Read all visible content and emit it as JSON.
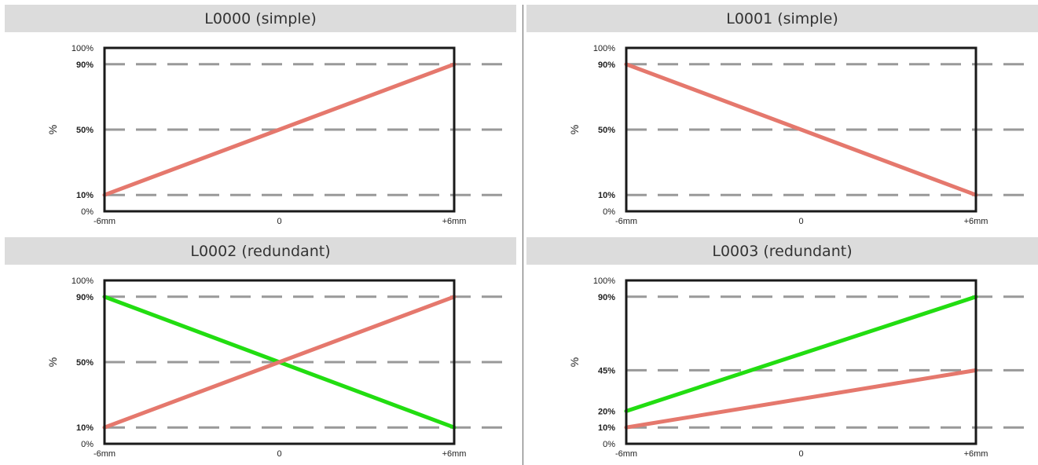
{
  "colors": {
    "header_bg": "#dcdcdc",
    "frame": "#1a1a1a",
    "grid": "#999999",
    "red_series": "#e5786d",
    "green_series": "#22dd11"
  },
  "chart_data": [
    {
      "type": "line",
      "title": "L0000 (simple)",
      "ylabel": "%",
      "xlim": [
        -6,
        6
      ],
      "ylim": [
        0,
        100
      ],
      "x_ticks": [
        {
          "value": -6,
          "label": "-6mm"
        },
        {
          "value": 0,
          "label": "0"
        },
        {
          "value": 6,
          "label": "+6mm"
        }
      ],
      "y_ticks": [
        {
          "value": 100,
          "label": "100%",
          "bold": false
        },
        {
          "value": 90,
          "label": "90%",
          "bold": true
        },
        {
          "value": 50,
          "label": "50%",
          "bold": true
        },
        {
          "value": 10,
          "label": "10%",
          "bold": true
        },
        {
          "value": 0,
          "label": "0%",
          "bold": false
        }
      ],
      "grid_dashed": [
        90,
        50,
        10
      ],
      "series": [
        {
          "color": "#e5786d",
          "x": [
            -6,
            6
          ],
          "y": [
            10,
            90
          ]
        }
      ]
    },
    {
      "type": "line",
      "title": "L0001 (simple)",
      "ylabel": "%",
      "xlim": [
        -6,
        6
      ],
      "ylim": [
        0,
        100
      ],
      "x_ticks": [
        {
          "value": -6,
          "label": "-6mm"
        },
        {
          "value": 0,
          "label": "0"
        },
        {
          "value": 6,
          "label": "+6mm"
        }
      ],
      "y_ticks": [
        {
          "value": 100,
          "label": "100%",
          "bold": false
        },
        {
          "value": 90,
          "label": "90%",
          "bold": true
        },
        {
          "value": 50,
          "label": "50%",
          "bold": true
        },
        {
          "value": 10,
          "label": "10%",
          "bold": true
        },
        {
          "value": 0,
          "label": "0%",
          "bold": false
        }
      ],
      "grid_dashed": [
        90,
        50,
        10
      ],
      "series": [
        {
          "color": "#e5786d",
          "x": [
            -6,
            6
          ],
          "y": [
            90,
            10
          ]
        }
      ]
    },
    {
      "type": "line",
      "title": "L0002 (redundant)",
      "ylabel": "%",
      "xlim": [
        -6,
        6
      ],
      "ylim": [
        0,
        100
      ],
      "x_ticks": [
        {
          "value": -6,
          "label": "-6mm"
        },
        {
          "value": 0,
          "label": "0"
        },
        {
          "value": 6,
          "label": "+6mm"
        }
      ],
      "y_ticks": [
        {
          "value": 100,
          "label": "100%",
          "bold": false
        },
        {
          "value": 90,
          "label": "90%",
          "bold": true
        },
        {
          "value": 50,
          "label": "50%",
          "bold": true
        },
        {
          "value": 10,
          "label": "10%",
          "bold": true
        },
        {
          "value": 0,
          "label": "0%",
          "bold": false
        }
      ],
      "grid_dashed": [
        90,
        50,
        10
      ],
      "series": [
        {
          "color": "#22dd11",
          "x": [
            -6,
            6
          ],
          "y": [
            90,
            10
          ]
        },
        {
          "color": "#e5786d",
          "x": [
            -6,
            6
          ],
          "y": [
            10,
            90
          ]
        }
      ]
    },
    {
      "type": "line",
      "title": "L0003 (redundant)",
      "ylabel": "%",
      "xlim": [
        -6,
        6
      ],
      "ylim": [
        0,
        100
      ],
      "x_ticks": [
        {
          "value": -6,
          "label": "-6mm"
        },
        {
          "value": 0,
          "label": "0"
        },
        {
          "value": 6,
          "label": "+6mm"
        }
      ],
      "y_ticks": [
        {
          "value": 100,
          "label": "100%",
          "bold": false
        },
        {
          "value": 90,
          "label": "90%",
          "bold": true
        },
        {
          "value": 45,
          "label": "45%",
          "bold": true
        },
        {
          "value": 20,
          "label": "20%",
          "bold": true
        },
        {
          "value": 10,
          "label": "10%",
          "bold": true
        },
        {
          "value": 0,
          "label": "0%",
          "bold": false
        }
      ],
      "grid_dashed": [
        90,
        45,
        10
      ],
      "series": [
        {
          "color": "#22dd11",
          "x": [
            -6,
            6
          ],
          "y": [
            20,
            90
          ]
        },
        {
          "color": "#e5786d",
          "x": [
            -6,
            6
          ],
          "y": [
            10,
            45
          ]
        }
      ]
    }
  ]
}
